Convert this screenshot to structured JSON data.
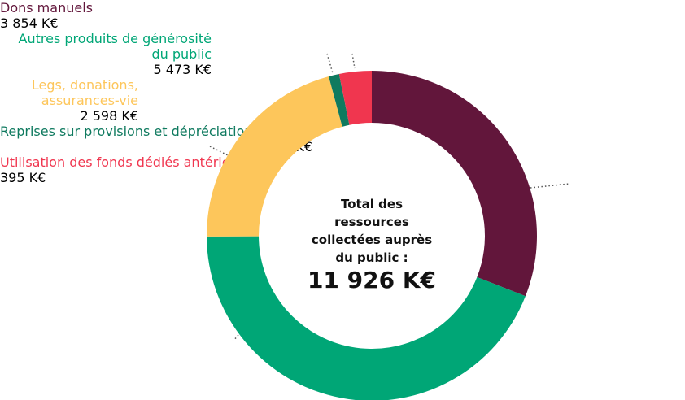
{
  "chart_data": {
    "type": "donut",
    "categories": [
      "Dons manuels",
      "Autres produits de générosité du public",
      "Legs, donations, assurances-vie",
      "Reprises sur provisions et dépréciations",
      "Utilisation des fonds dédiés antérieurs"
    ],
    "values": [
      3854,
      5473,
      2598,
      128,
      395
    ],
    "value_labels": [
      "3 854 K€",
      "5 473 K€",
      "2 598 K€",
      "128 K€",
      "395 K€"
    ],
    "colors": [
      "#62163b",
      "#00a676",
      "#fdc65b",
      "#0f7a5f",
      "#f0364f"
    ],
    "center_title": "Total des ressources collectées auprès du public :",
    "center_value": "11 926 K€"
  }
}
